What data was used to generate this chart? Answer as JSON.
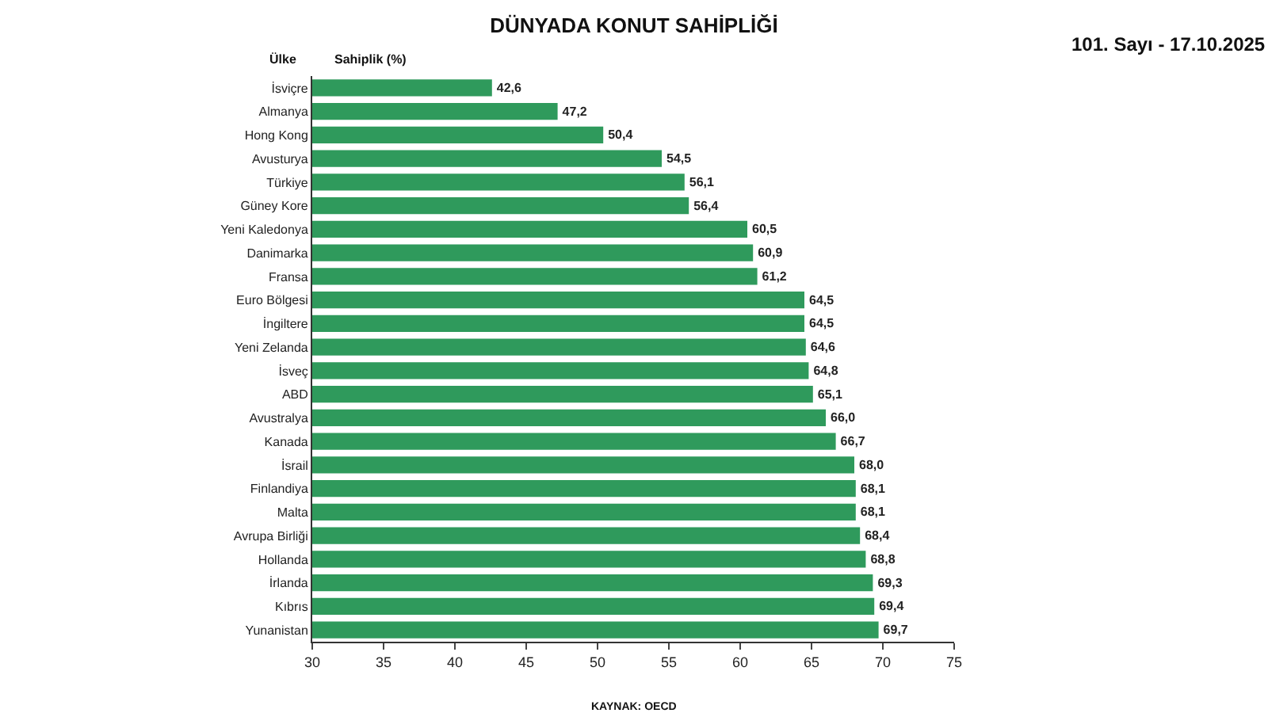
{
  "chart_data": {
    "type": "bar",
    "orientation": "horizontal",
    "title": "DÜNYADA KONUT SAHİPLİĞİ",
    "xlabel": "Sahiplik (%)",
    "ylabel": "Ülke",
    "categories": [
      "İsviçre",
      "Almanya",
      "Hong Kong",
      "Avusturya",
      "Türkiye",
      "Güney Kore",
      "Yeni Kaledonya",
      "Danimarka",
      "Fransa",
      "Euro Bölgesi",
      "İngiltere",
      "Yeni Zelanda",
      "İsveç",
      "ABD",
      "Avustralya",
      "Kanada",
      "İsrail",
      "Finlandiya",
      "Malta",
      "Avrupa Birliği",
      "Hollanda",
      "İrlanda",
      "Kıbrıs",
      "Yunanistan"
    ],
    "values": [
      42.6,
      47.2,
      50.4,
      54.5,
      56.1,
      56.4,
      60.5,
      60.9,
      61.2,
      64.5,
      64.5,
      64.6,
      64.8,
      65.1,
      66.0,
      66.7,
      68.0,
      68.1,
      68.1,
      68.4,
      68.8,
      69.3,
      69.4,
      69.7
    ],
    "value_labels": [
      "42,6",
      "47,2",
      "50,4",
      "54,5",
      "56,1",
      "56,4",
      "60,5",
      "60,9",
      "61,2",
      "64,5",
      "64,5",
      "64,6",
      "64,8",
      "65,1",
      "66,0",
      "66,7",
      "68,0",
      "68,1",
      "68,1",
      "68,4",
      "68,8",
      "69,3",
      "69,4",
      "69,7"
    ],
    "color": "#2f9a5c",
    "xlim": [
      30,
      75
    ],
    "xticks": [
      30,
      35,
      40,
      45,
      50,
      55,
      60,
      65,
      70,
      75
    ],
    "annotations": [
      "KAYNAK: OECD",
      "101. Sayı - 17.10.2025"
    ]
  }
}
